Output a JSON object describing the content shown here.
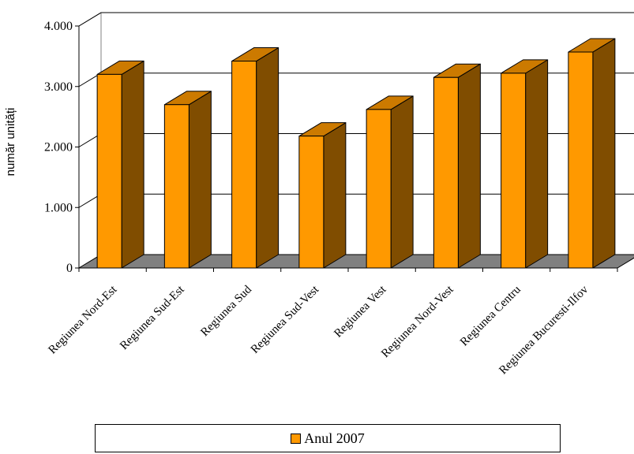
{
  "chart_data": {
    "type": "bar",
    "title": "",
    "xlabel": "",
    "ylabel": "număr unități",
    "ylim": [
      0,
      4000
    ],
    "yticks": [
      0,
      1000,
      2000,
      3000,
      4000
    ],
    "ytick_labels": [
      "0",
      "1.000",
      "2.000",
      "3.000",
      "4.000"
    ],
    "grid": true,
    "legend_position": "bottom",
    "categories": [
      "Regiunea Nord-Est",
      "Regiunea Sud-Est",
      "Regiunea Sud",
      "Regiunea Sud-Vest",
      "Regiunea Vest",
      "Regiunea Nord-Vest",
      "Regiunea Centru",
      "Regiunea Bucuresti-Ilfov"
    ],
    "series": [
      {
        "name": "Anul 2007",
        "values": [
          3200,
          2700,
          3420,
          2180,
          2620,
          3150,
          3220,
          3570
        ]
      }
    ],
    "colors": {
      "front": "#ff9900",
      "top": "#cc7a00",
      "side": "#804d00",
      "floor": "#808080"
    }
  }
}
